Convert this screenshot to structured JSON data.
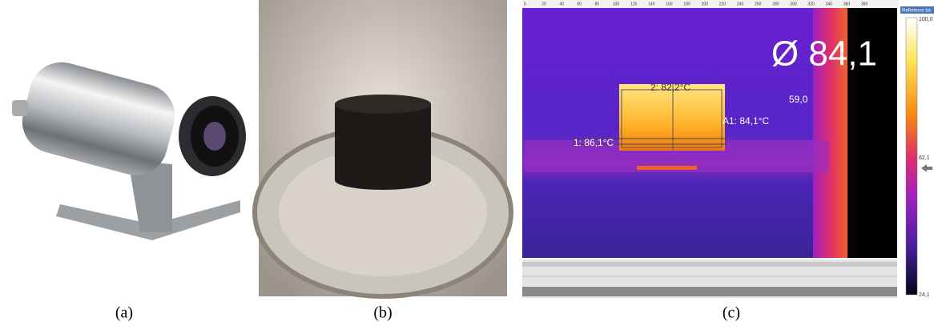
{
  "panels": [
    {
      "label": "(a)"
    },
    {
      "label": "(b)"
    },
    {
      "label": "(c)",
      "thermal": {
        "average": "Ø 84,1",
        "spot": "59,0",
        "area2": "2: 82,2°C",
        "areaA1": "A1: 84,1°C",
        "area1": "1: 86,1°C",
        "ruler": [
          "0",
          "20",
          "40",
          "60",
          "80",
          "100",
          "120",
          "140",
          "160",
          "180",
          "200",
          "220",
          "240",
          "260",
          "280",
          "300",
          "320",
          "340",
          "360",
          "380"
        ],
        "reference": "Reference ba",
        "scale_max": "100,0",
        "scale_mid": "62,1",
        "scale_min": "24,1"
      }
    }
  ]
}
